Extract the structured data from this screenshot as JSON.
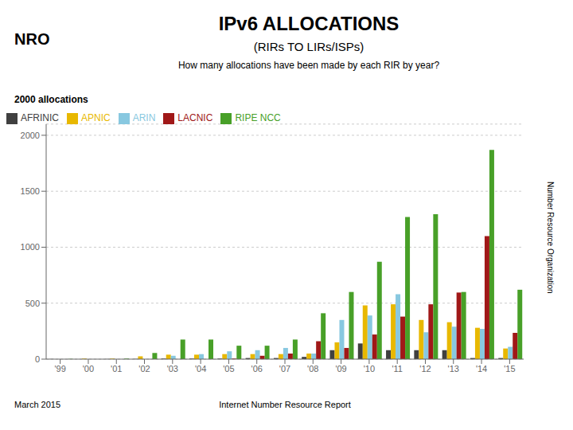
{
  "chart_data": {
    "type": "bar",
    "title": "IPv6 ALLOCATIONS",
    "subtitle": "(RIRs TO LIRs/ISPs)",
    "ylabel": "2000 allocations",
    "annotations": [
      "How many allocations have been made by each RIR by year?",
      "March 2015",
      "Internet Number Resource Report",
      "NRO",
      "Number Resource Organization"
    ],
    "categories": [
      "'99",
      "'00",
      "'01",
      "'02",
      "'03",
      "'04",
      "'05",
      "'06",
      "'07",
      "'08",
      "'09",
      "'10",
      "'11",
      "'12",
      "'13",
      "'14",
      "'15"
    ],
    "series": [
      {
        "name": "AFRINIC",
        "color": "#404040",
        "values": [
          1,
          0,
          1,
          2,
          5,
          5,
          5,
          10,
          10,
          20,
          80,
          140,
          80,
          80,
          80,
          10,
          10
        ]
      },
      {
        "name": "APNIC",
        "color": "#e8b800",
        "values": [
          0,
          5,
          5,
          25,
          40,
          40,
          45,
          45,
          45,
          50,
          150,
          480,
          490,
          350,
          330,
          280,
          95
        ]
      },
      {
        "name": "ARIN",
        "color": "#88c8e0",
        "values": [
          0,
          0,
          0,
          0,
          30,
          45,
          70,
          80,
          100,
          50,
          350,
          390,
          580,
          240,
          290,
          270,
          110
        ]
      },
      {
        "name": "LACNIC",
        "color": "#a01818",
        "values": [
          0,
          0,
          0,
          0,
          0,
          0,
          5,
          30,
          50,
          160,
          100,
          220,
          380,
          490,
          595,
          1100,
          235
        ]
      },
      {
        "name": "RIPE NCC",
        "color": "#48a028",
        "values": [
          2,
          0,
          5,
          55,
          175,
          175,
          120,
          120,
          175,
          410,
          600,
          870,
          1270,
          1295,
          600,
          1870,
          620
        ]
      }
    ],
    "ylim": [
      0,
      2100
    ],
    "yticks": [
      0,
      500,
      1000,
      1500,
      2000
    ],
    "grid": true,
    "legend": "upper left"
  }
}
